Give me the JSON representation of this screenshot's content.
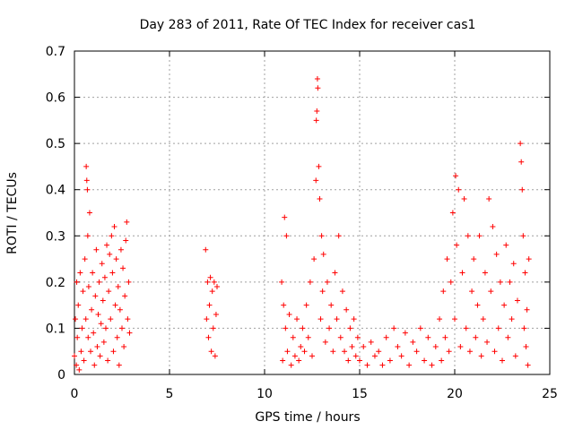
{
  "chart_data": {
    "type": "scatter",
    "title": "Day 283 of 2011, Rate Of TEC Index for receiver cas1",
    "xlabel": "GPS time / hours",
    "ylabel": "ROTI / TECUs",
    "xlim": [
      0,
      25
    ],
    "ylim": [
      0,
      0.7
    ],
    "x_ticks": [
      "0",
      "5",
      "10",
      "15",
      "20",
      "25"
    ],
    "y_ticks": [
      "0",
      "0.1",
      "0.2",
      "0.3",
      "0.4",
      "0.5",
      "0.6",
      "0.7"
    ],
    "grid": true,
    "marker": "+",
    "color": "#ff0000",
    "series": [
      {
        "points": [
          [
            0.0,
            0.04
          ],
          [
            0.05,
            0.12
          ],
          [
            0.1,
            0.02
          ],
          [
            0.12,
            0.2
          ],
          [
            0.15,
            0.08
          ],
          [
            0.2,
            0.15
          ],
          [
            0.25,
            0.01
          ],
          [
            0.3,
            0.22
          ],
          [
            0.35,
            0.05
          ],
          [
            0.4,
            0.1
          ],
          [
            0.45,
            0.18
          ],
          [
            0.5,
            0.03
          ],
          [
            0.55,
            0.25
          ],
          [
            0.6,
            0.12
          ],
          [
            0.62,
            0.45
          ],
          [
            0.65,
            0.42
          ],
          [
            0.68,
            0.4
          ],
          [
            0.7,
            0.3
          ],
          [
            0.72,
            0.08
          ],
          [
            0.75,
            0.19
          ],
          [
            0.8,
            0.35
          ],
          [
            0.85,
            0.05
          ],
          [
            0.9,
            0.14
          ],
          [
            0.95,
            0.22
          ],
          [
            1.0,
            0.09
          ],
          [
            1.05,
            0.02
          ],
          [
            1.1,
            0.17
          ],
          [
            1.15,
            0.27
          ],
          [
            1.2,
            0.06
          ],
          [
            1.25,
            0.13
          ],
          [
            1.3,
            0.2
          ],
          [
            1.35,
            0.04
          ],
          [
            1.4,
            0.11
          ],
          [
            1.45,
            0.24
          ],
          [
            1.5,
            0.16
          ],
          [
            1.55,
            0.07
          ],
          [
            1.6,
            0.21
          ],
          [
            1.65,
            0.1
          ],
          [
            1.7,
            0.28
          ],
          [
            1.75,
            0.03
          ],
          [
            1.8,
            0.18
          ],
          [
            1.85,
            0.26
          ],
          [
            1.9,
            0.12
          ],
          [
            1.95,
            0.3
          ],
          [
            2.0,
            0.22
          ],
          [
            2.05,
            0.05
          ],
          [
            2.1,
            0.32
          ],
          [
            2.15,
            0.15
          ],
          [
            2.2,
            0.25
          ],
          [
            2.25,
            0.08
          ],
          [
            2.3,
            0.19
          ],
          [
            2.35,
            0.02
          ],
          [
            2.4,
            0.14
          ],
          [
            2.45,
            0.27
          ],
          [
            2.5,
            0.1
          ],
          [
            2.55,
            0.23
          ],
          [
            2.6,
            0.06
          ],
          [
            2.65,
            0.17
          ],
          [
            2.7,
            0.29
          ],
          [
            2.75,
            0.33
          ],
          [
            2.8,
            0.12
          ],
          [
            2.85,
            0.2
          ],
          [
            2.9,
            0.09
          ],
          [
            6.9,
            0.27
          ],
          [
            6.95,
            0.12
          ],
          [
            7.0,
            0.2
          ],
          [
            7.05,
            0.08
          ],
          [
            7.1,
            0.15
          ],
          [
            7.15,
            0.21
          ],
          [
            7.2,
            0.05
          ],
          [
            7.25,
            0.18
          ],
          [
            7.3,
            0.1
          ],
          [
            7.35,
            0.2
          ],
          [
            7.4,
            0.04
          ],
          [
            7.45,
            0.13
          ],
          [
            7.5,
            0.19
          ],
          [
            10.9,
            0.2
          ],
          [
            10.95,
            0.03
          ],
          [
            11.0,
            0.15
          ],
          [
            11.05,
            0.34
          ],
          [
            11.1,
            0.1
          ],
          [
            11.15,
            0.3
          ],
          [
            11.2,
            0.05
          ],
          [
            11.3,
            0.13
          ],
          [
            11.4,
            0.02
          ],
          [
            11.5,
            0.08
          ],
          [
            11.6,
            0.04
          ],
          [
            11.7,
            0.12
          ],
          [
            11.8,
            0.03
          ],
          [
            11.9,
            0.06
          ],
          [
            12.0,
            0.1
          ],
          [
            12.1,
            0.05
          ],
          [
            12.2,
            0.15
          ],
          [
            12.3,
            0.08
          ],
          [
            12.4,
            0.2
          ],
          [
            12.5,
            0.04
          ],
          [
            12.6,
            0.25
          ],
          [
            12.7,
            0.42
          ],
          [
            12.72,
            0.55
          ],
          [
            12.75,
            0.57
          ],
          [
            12.78,
            0.64
          ],
          [
            12.8,
            0.62
          ],
          [
            12.85,
            0.45
          ],
          [
            12.9,
            0.38
          ],
          [
            12.95,
            0.12
          ],
          [
            13.0,
            0.3
          ],
          [
            13.05,
            0.18
          ],
          [
            13.1,
            0.26
          ],
          [
            13.2,
            0.07
          ],
          [
            13.3,
            0.2
          ],
          [
            13.4,
            0.1
          ],
          [
            13.5,
            0.15
          ],
          [
            13.6,
            0.05
          ],
          [
            13.7,
            0.22
          ],
          [
            13.8,
            0.12
          ],
          [
            13.9,
            0.3
          ],
          [
            14.0,
            0.08
          ],
          [
            14.1,
            0.18
          ],
          [
            14.2,
            0.05
          ],
          [
            14.3,
            0.14
          ],
          [
            14.4,
            0.03
          ],
          [
            14.5,
            0.1
          ],
          [
            14.6,
            0.06
          ],
          [
            14.7,
            0.12
          ],
          [
            14.8,
            0.04
          ],
          [
            14.9,
            0.08
          ],
          [
            15.0,
            0.03
          ],
          [
            15.2,
            0.06
          ],
          [
            15.4,
            0.02
          ],
          [
            15.6,
            0.07
          ],
          [
            15.8,
            0.04
          ],
          [
            16.0,
            0.05
          ],
          [
            16.2,
            0.02
          ],
          [
            16.4,
            0.08
          ],
          [
            16.6,
            0.03
          ],
          [
            16.8,
            0.1
          ],
          [
            17.0,
            0.06
          ],
          [
            17.2,
            0.04
          ],
          [
            17.4,
            0.09
          ],
          [
            17.6,
            0.02
          ],
          [
            17.8,
            0.07
          ],
          [
            18.0,
            0.05
          ],
          [
            18.2,
            0.1
          ],
          [
            18.4,
            0.03
          ],
          [
            18.6,
            0.08
          ],
          [
            18.8,
            0.02
          ],
          [
            19.0,
            0.06
          ],
          [
            19.2,
            0.12
          ],
          [
            19.3,
            0.03
          ],
          [
            19.4,
            0.18
          ],
          [
            19.5,
            0.08
          ],
          [
            19.6,
            0.25
          ],
          [
            19.7,
            0.05
          ],
          [
            19.8,
            0.2
          ],
          [
            19.9,
            0.35
          ],
          [
            20.0,
            0.12
          ],
          [
            20.05,
            0.43
          ],
          [
            20.1,
            0.28
          ],
          [
            20.2,
            0.4
          ],
          [
            20.3,
            0.06
          ],
          [
            20.4,
            0.22
          ],
          [
            20.5,
            0.38
          ],
          [
            20.6,
            0.1
          ],
          [
            20.7,
            0.3
          ],
          [
            20.8,
            0.05
          ],
          [
            20.9,
            0.18
          ],
          [
            21.0,
            0.25
          ],
          [
            21.1,
            0.08
          ],
          [
            21.2,
            0.15
          ],
          [
            21.3,
            0.3
          ],
          [
            21.4,
            0.04
          ],
          [
            21.5,
            0.12
          ],
          [
            21.6,
            0.22
          ],
          [
            21.7,
            0.07
          ],
          [
            21.8,
            0.38
          ],
          [
            21.9,
            0.18
          ],
          [
            22.0,
            0.32
          ],
          [
            22.1,
            0.05
          ],
          [
            22.2,
            0.26
          ],
          [
            22.3,
            0.1
          ],
          [
            22.4,
            0.2
          ],
          [
            22.5,
            0.03
          ],
          [
            22.6,
            0.15
          ],
          [
            22.7,
            0.28
          ],
          [
            22.8,
            0.08
          ],
          [
            22.9,
            0.2
          ],
          [
            23.0,
            0.12
          ],
          [
            23.1,
            0.24
          ],
          [
            23.2,
            0.04
          ],
          [
            23.3,
            0.16
          ],
          [
            23.45,
            0.5
          ],
          [
            23.5,
            0.46
          ],
          [
            23.55,
            0.4
          ],
          [
            23.6,
            0.3
          ],
          [
            23.65,
            0.1
          ],
          [
            23.7,
            0.22
          ],
          [
            23.75,
            0.06
          ],
          [
            23.8,
            0.14
          ],
          [
            23.85,
            0.02
          ],
          [
            23.9,
            0.25
          ]
        ]
      }
    ]
  }
}
